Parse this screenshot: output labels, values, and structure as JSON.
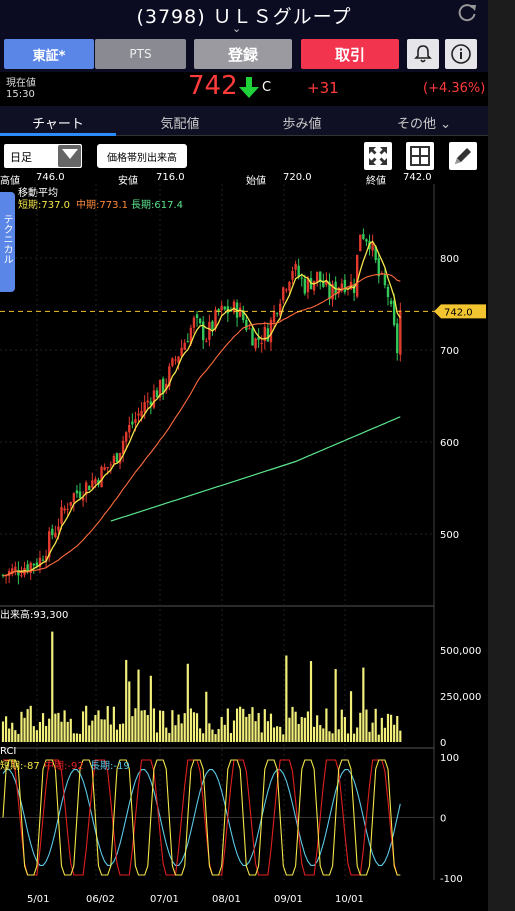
{
  "header": {
    "title": "(3798) ＵＬＳグループ",
    "chevron": "⌄",
    "refresh_icon": "refresh-icon"
  },
  "buttons": {
    "tosho": "東証*",
    "pts": "PTS",
    "register": "登録",
    "trade": "取引",
    "bell_icon": "bell-icon",
    "info_icon": "info-icon"
  },
  "price": {
    "label": "現在値",
    "time": "15:30",
    "value": "742",
    "flag": "C",
    "change": "+31",
    "change_pct": "(+4.36%)"
  },
  "tabs": [
    "チャート",
    "気配値",
    "歩み値",
    "その他 ⌄"
  ],
  "toolbar": {
    "period": "日足",
    "volume_profile": "価格帯別出来高"
  },
  "ohlc": {
    "high_label": "高値",
    "high": "746.0",
    "low_label": "安値",
    "low": "716.0",
    "open_label": "始値",
    "open": "720.0",
    "close_label": "終値",
    "close": "742.0"
  },
  "moving_average": {
    "title": "移動平均",
    "short": "短期:737.0",
    "mid": "中期:773.1",
    "long": "長期:617.4"
  },
  "side_tab": "テクニカル",
  "price_axis": {
    "ticks": [
      "800",
      "700",
      "600",
      "500"
    ],
    "current": "742.0"
  },
  "volume": {
    "title": "出来高:93,300",
    "ticks": [
      "500,000",
      "250,000",
      "0"
    ]
  },
  "rci": {
    "title": "RCI",
    "short": "短期:-87",
    "mid": "中期:-92",
    "long": "長期:-19",
    "ticks": [
      "100",
      "0",
      "-100"
    ]
  },
  "x_axis": [
    "5/01",
    "06/02",
    "07/01",
    "08/01",
    "09/01",
    "10/01"
  ],
  "colors": {
    "up": "#e23a2e",
    "down": "#34c759",
    "ma_short": "#f5e64a",
    "ma_mid": "#ff6a3d",
    "ma_long": "#5be68c",
    "volume": "#f2ef7a",
    "rci_short": "#f5e64a",
    "rci_mid": "#e02020",
    "rci_long": "#5bc8e6"
  }
}
